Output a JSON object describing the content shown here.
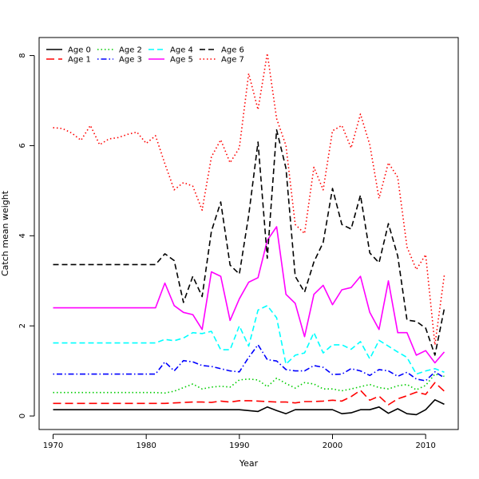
{
  "chart_data": {
    "type": "line",
    "title": "",
    "xlabel": "Year",
    "ylabel": "Catch mean weight",
    "xlim": [
      1968.5,
      2013.5
    ],
    "ylim": [
      -0.3,
      8.4
    ],
    "x_ticks": [
      1970,
      1980,
      1990,
      2000,
      2010
    ],
    "y_ticks": [
      0,
      2,
      4,
      6,
      8
    ],
    "grid": false,
    "legend_position": "top-left",
    "x": [
      1970,
      1971,
      1972,
      1973,
      1974,
      1975,
      1976,
      1977,
      1978,
      1979,
      1980,
      1981,
      1982,
      1983,
      1984,
      1985,
      1986,
      1987,
      1988,
      1989,
      1990,
      1991,
      1992,
      1993,
      1994,
      1995,
      1996,
      1997,
      1998,
      1999,
      2000,
      2001,
      2002,
      2003,
      2004,
      2005,
      2006,
      2007,
      2008,
      2009,
      2010,
      2011,
      2012
    ],
    "series": [
      {
        "name": "Age 0",
        "color": "#000000",
        "dash": "solid",
        "values": [
          0.14,
          0.14,
          0.14,
          0.14,
          0.14,
          0.14,
          0.14,
          0.14,
          0.14,
          0.14,
          0.14,
          0.14,
          0.14,
          0.14,
          0.14,
          0.14,
          0.14,
          0.14,
          0.14,
          0.14,
          0.14,
          0.12,
          0.1,
          0.2,
          0.12,
          0.05,
          0.14,
          0.14,
          0.14,
          0.14,
          0.14,
          0.05,
          0.07,
          0.14,
          0.14,
          0.2,
          0.06,
          0.16,
          0.05,
          0.03,
          0.14,
          0.36,
          0.26
        ]
      },
      {
        "name": "Age 1",
        "color": "#ff0000",
        "dash": "long-dash",
        "values": [
          0.28,
          0.28,
          0.28,
          0.28,
          0.28,
          0.28,
          0.28,
          0.28,
          0.28,
          0.28,
          0.28,
          0.28,
          0.28,
          0.29,
          0.3,
          0.31,
          0.31,
          0.3,
          0.33,
          0.31,
          0.34,
          0.34,
          0.33,
          0.32,
          0.31,
          0.31,
          0.29,
          0.32,
          0.32,
          0.33,
          0.35,
          0.33,
          0.43,
          0.57,
          0.35,
          0.44,
          0.25,
          0.38,
          0.45,
          0.53,
          0.48,
          0.74,
          0.55
        ]
      },
      {
        "name": "Age 2",
        "color": "#00cc00",
        "dash": "dotted",
        "values": [
          0.52,
          0.52,
          0.52,
          0.52,
          0.52,
          0.52,
          0.52,
          0.52,
          0.52,
          0.52,
          0.52,
          0.52,
          0.51,
          0.55,
          0.63,
          0.71,
          0.6,
          0.64,
          0.66,
          0.64,
          0.8,
          0.82,
          0.8,
          0.65,
          0.84,
          0.72,
          0.62,
          0.74,
          0.71,
          0.6,
          0.6,
          0.56,
          0.6,
          0.65,
          0.7,
          0.63,
          0.6,
          0.67,
          0.7,
          0.58,
          0.68,
          0.93,
          0.88
        ]
      },
      {
        "name": "Age 3",
        "color": "#0000ff",
        "dash": "dot-dash",
        "values": [
          0.93,
          0.93,
          0.93,
          0.93,
          0.93,
          0.93,
          0.93,
          0.93,
          0.93,
          0.93,
          0.93,
          0.93,
          1.2,
          1.0,
          1.23,
          1.2,
          1.12,
          1.1,
          1.05,
          1.0,
          0.98,
          1.3,
          1.58,
          1.25,
          1.22,
          1.03,
          1.0,
          1.0,
          1.12,
          1.08,
          0.92,
          0.93,
          1.05,
          1.0,
          0.9,
          1.03,
          1.0,
          0.88,
          0.97,
          0.82,
          0.78,
          0.98,
          0.85
        ]
      },
      {
        "name": "Age 4",
        "color": "#00ffff",
        "dash": "dashed",
        "values": [
          1.62,
          1.62,
          1.62,
          1.62,
          1.62,
          1.62,
          1.62,
          1.62,
          1.62,
          1.62,
          1.62,
          1.62,
          1.7,
          1.67,
          1.73,
          1.85,
          1.83,
          1.88,
          1.47,
          1.47,
          2.0,
          1.55,
          2.35,
          2.45,
          2.18,
          1.15,
          1.35,
          1.4,
          1.85,
          1.4,
          1.58,
          1.58,
          1.48,
          1.65,
          1.27,
          1.68,
          1.55,
          1.42,
          1.3,
          0.93,
          1.0,
          1.05,
          0.97
        ]
      },
      {
        "name": "Age 5",
        "color": "#ff00ff",
        "dash": "solid",
        "values": [
          2.4,
          2.4,
          2.4,
          2.4,
          2.4,
          2.4,
          2.4,
          2.4,
          2.4,
          2.4,
          2.4,
          2.4,
          2.95,
          2.45,
          2.3,
          2.25,
          1.92,
          3.2,
          3.1,
          2.12,
          2.6,
          2.97,
          3.07,
          3.9,
          4.2,
          2.7,
          2.5,
          1.76,
          2.7,
          2.9,
          2.47,
          2.8,
          2.85,
          3.1,
          2.3,
          1.92,
          3.0,
          1.85,
          1.85,
          1.35,
          1.45,
          1.18,
          1.42
        ]
      },
      {
        "name": "Age 6",
        "color": "#000000",
        "dash": "dashed",
        "values": [
          3.36,
          3.36,
          3.36,
          3.36,
          3.36,
          3.36,
          3.36,
          3.36,
          3.36,
          3.36,
          3.36,
          3.36,
          3.6,
          3.45,
          2.52,
          3.1,
          2.65,
          4.1,
          4.75,
          3.35,
          3.15,
          4.45,
          6.08,
          3.5,
          6.35,
          5.5,
          3.1,
          2.75,
          3.42,
          3.85,
          5.05,
          4.25,
          4.15,
          4.9,
          3.62,
          3.4,
          4.27,
          3.55,
          2.13,
          2.1,
          1.95,
          1.35,
          2.38
        ]
      },
      {
        "name": "Age 7",
        "color": "#ff0000",
        "dash": "dotted",
        "values": [
          6.4,
          6.38,
          6.28,
          6.12,
          6.45,
          6.02,
          6.15,
          6.18,
          6.25,
          6.3,
          6.05,
          6.22,
          5.6,
          5.02,
          5.18,
          5.1,
          4.57,
          5.75,
          6.13,
          5.62,
          5.95,
          7.6,
          6.8,
          8.05,
          6.6,
          6.0,
          4.25,
          4.05,
          5.52,
          5.02,
          6.33,
          6.45,
          5.95,
          6.7,
          6.02,
          4.83,
          5.62,
          5.3,
          3.75,
          3.25,
          3.58,
          1.58,
          3.12
        ]
      }
    ]
  }
}
